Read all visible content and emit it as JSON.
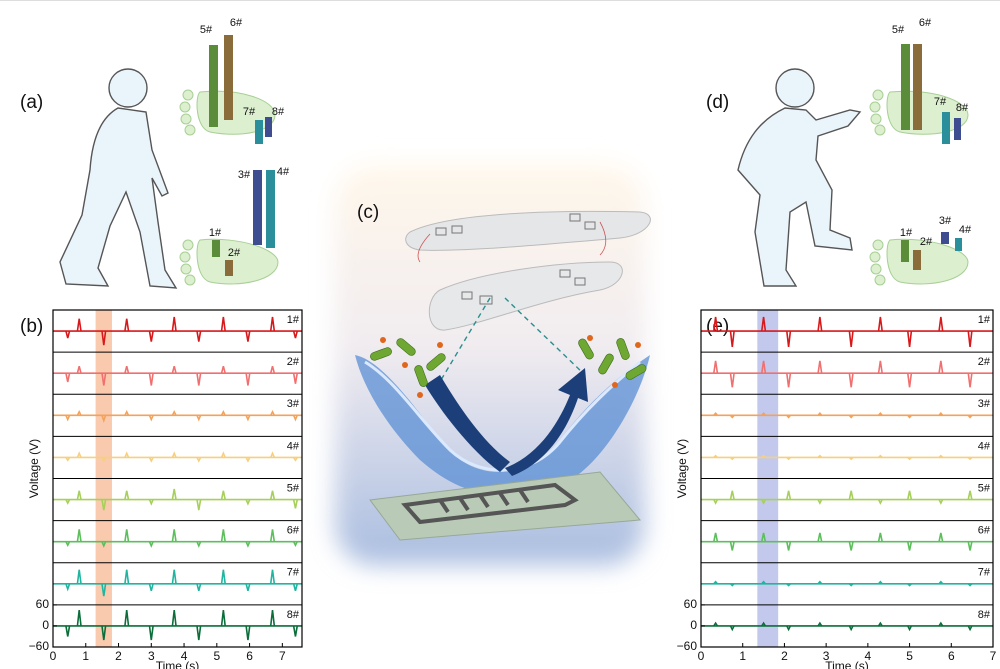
{
  "labels": {
    "a": "(a)",
    "c": "(c)",
    "d": "(d)"
  },
  "feet": {
    "a": [
      "1#",
      "2#",
      "3#",
      "4#",
      "5#",
      "6#",
      "7#",
      "8#"
    ],
    "d": [
      "1#",
      "2#",
      "3#",
      "4#",
      "5#",
      "6#",
      "7#",
      "8#"
    ]
  },
  "chart_data": [
    {
      "type": "line",
      "label": "(b)",
      "xlabel": "Time (s)",
      "ylabel": "Voltage (V)",
      "xlim": [
        0,
        7.6
      ],
      "xticks": [
        0,
        1,
        2,
        3,
        4,
        5,
        6,
        7
      ],
      "ylim": [
        -60,
        60
      ],
      "yticks": [
        60,
        0,
        {
          "value": -60,
          "label": "−60"
        }
      ],
      "highlight": [
        1.3,
        1.8
      ],
      "highlight_color": "#f6b48a",
      "x": [
        0.45,
        0.8,
        1.55,
        2.25,
        3.0,
        3.7,
        4.45,
        5.2,
        5.95,
        6.7,
        7.4
      ],
      "series": [
        {
          "name": "1#",
          "color": "#d7191c",
          "values": [
            -20,
            35,
            -40,
            35,
            -30,
            40,
            -30,
            40,
            -30,
            40,
            -20
          ]
        },
        {
          "name": "2#",
          "color": "#f07070",
          "values": [
            -25,
            20,
            -35,
            20,
            -35,
            20,
            -35,
            20,
            -35,
            20,
            -30
          ]
        },
        {
          "name": "3#",
          "color": "#f4a259",
          "values": [
            -12,
            10,
            -15,
            10,
            -12,
            10,
            -12,
            10,
            -12,
            10,
            -12
          ]
        },
        {
          "name": "4#",
          "color": "#f6cf7f",
          "values": [
            -8,
            12,
            -10,
            12,
            -10,
            12,
            -10,
            12,
            -10,
            12,
            -8
          ]
        },
        {
          "name": "5#",
          "color": "#a6d05a",
          "values": [
            -10,
            25,
            -30,
            25,
            -12,
            30,
            -30,
            25,
            -12,
            25,
            -25
          ]
        },
        {
          "name": "6#",
          "color": "#5cbf5c",
          "values": [
            -10,
            35,
            -12,
            35,
            -12,
            35,
            -12,
            35,
            -12,
            35,
            -10
          ]
        },
        {
          "name": "7#",
          "color": "#20b5a0",
          "values": [
            -15,
            40,
            -35,
            40,
            -20,
            40,
            -20,
            40,
            -20,
            40,
            -20
          ]
        },
        {
          "name": "8#",
          "color": "#0b6e3a",
          "values": [
            -30,
            45,
            -40,
            45,
            -40,
            45,
            -40,
            45,
            -40,
            45,
            -30
          ]
        }
      ]
    },
    {
      "type": "line",
      "label": "(e)",
      "xlabel": "Time (s)",
      "ylabel": "Voltage (V)",
      "xlim": [
        0,
        7
      ],
      "xticks": [
        0,
        1,
        2,
        3,
        4,
        5,
        6,
        7
      ],
      "ylim": [
        -60,
        60
      ],
      "yticks": [
        60,
        0,
        {
          "value": -60,
          "label": "−60"
        }
      ],
      "highlight": [
        1.35,
        1.85
      ],
      "highlight_color": "#a9b2e6",
      "x": [
        0.35,
        0.75,
        1.5,
        2.1,
        2.85,
        3.6,
        4.3,
        5.0,
        5.75,
        6.45
      ],
      "series": [
        {
          "name": "1#",
          "color": "#d7191c",
          "values": [
            40,
            -45,
            40,
            -45,
            40,
            -45,
            40,
            -45,
            40,
            -45
          ]
        },
        {
          "name": "2#",
          "color": "#f07070",
          "values": [
            35,
            -40,
            35,
            -40,
            35,
            -40,
            35,
            -40,
            35,
            -40
          ]
        },
        {
          "name": "3#",
          "color": "#f4a259",
          "values": [
            6,
            -6,
            6,
            -6,
            6,
            -6,
            6,
            -6,
            6,
            -6
          ]
        },
        {
          "name": "4#",
          "color": "#f6cf7f",
          "values": [
            5,
            -5,
            5,
            -5,
            5,
            -5,
            5,
            -5,
            5,
            -5
          ]
        },
        {
          "name": "5#",
          "color": "#a6d05a",
          "values": [
            -10,
            25,
            -10,
            25,
            -10,
            25,
            -10,
            25,
            -10,
            25
          ]
        },
        {
          "name": "6#",
          "color": "#5cbf5c",
          "values": [
            25,
            -25,
            25,
            -25,
            25,
            -25,
            25,
            -25,
            25,
            -25
          ]
        },
        {
          "name": "7#",
          "color": "#20b5a0",
          "values": [
            6,
            -5,
            6,
            -5,
            6,
            -5,
            6,
            -5,
            6,
            -5
          ]
        },
        {
          "name": "8#",
          "color": "#0b6e3a",
          "values": [
            8,
            -10,
            8,
            -10,
            8,
            -10,
            8,
            -10,
            8,
            -10
          ]
        }
      ]
    }
  ]
}
